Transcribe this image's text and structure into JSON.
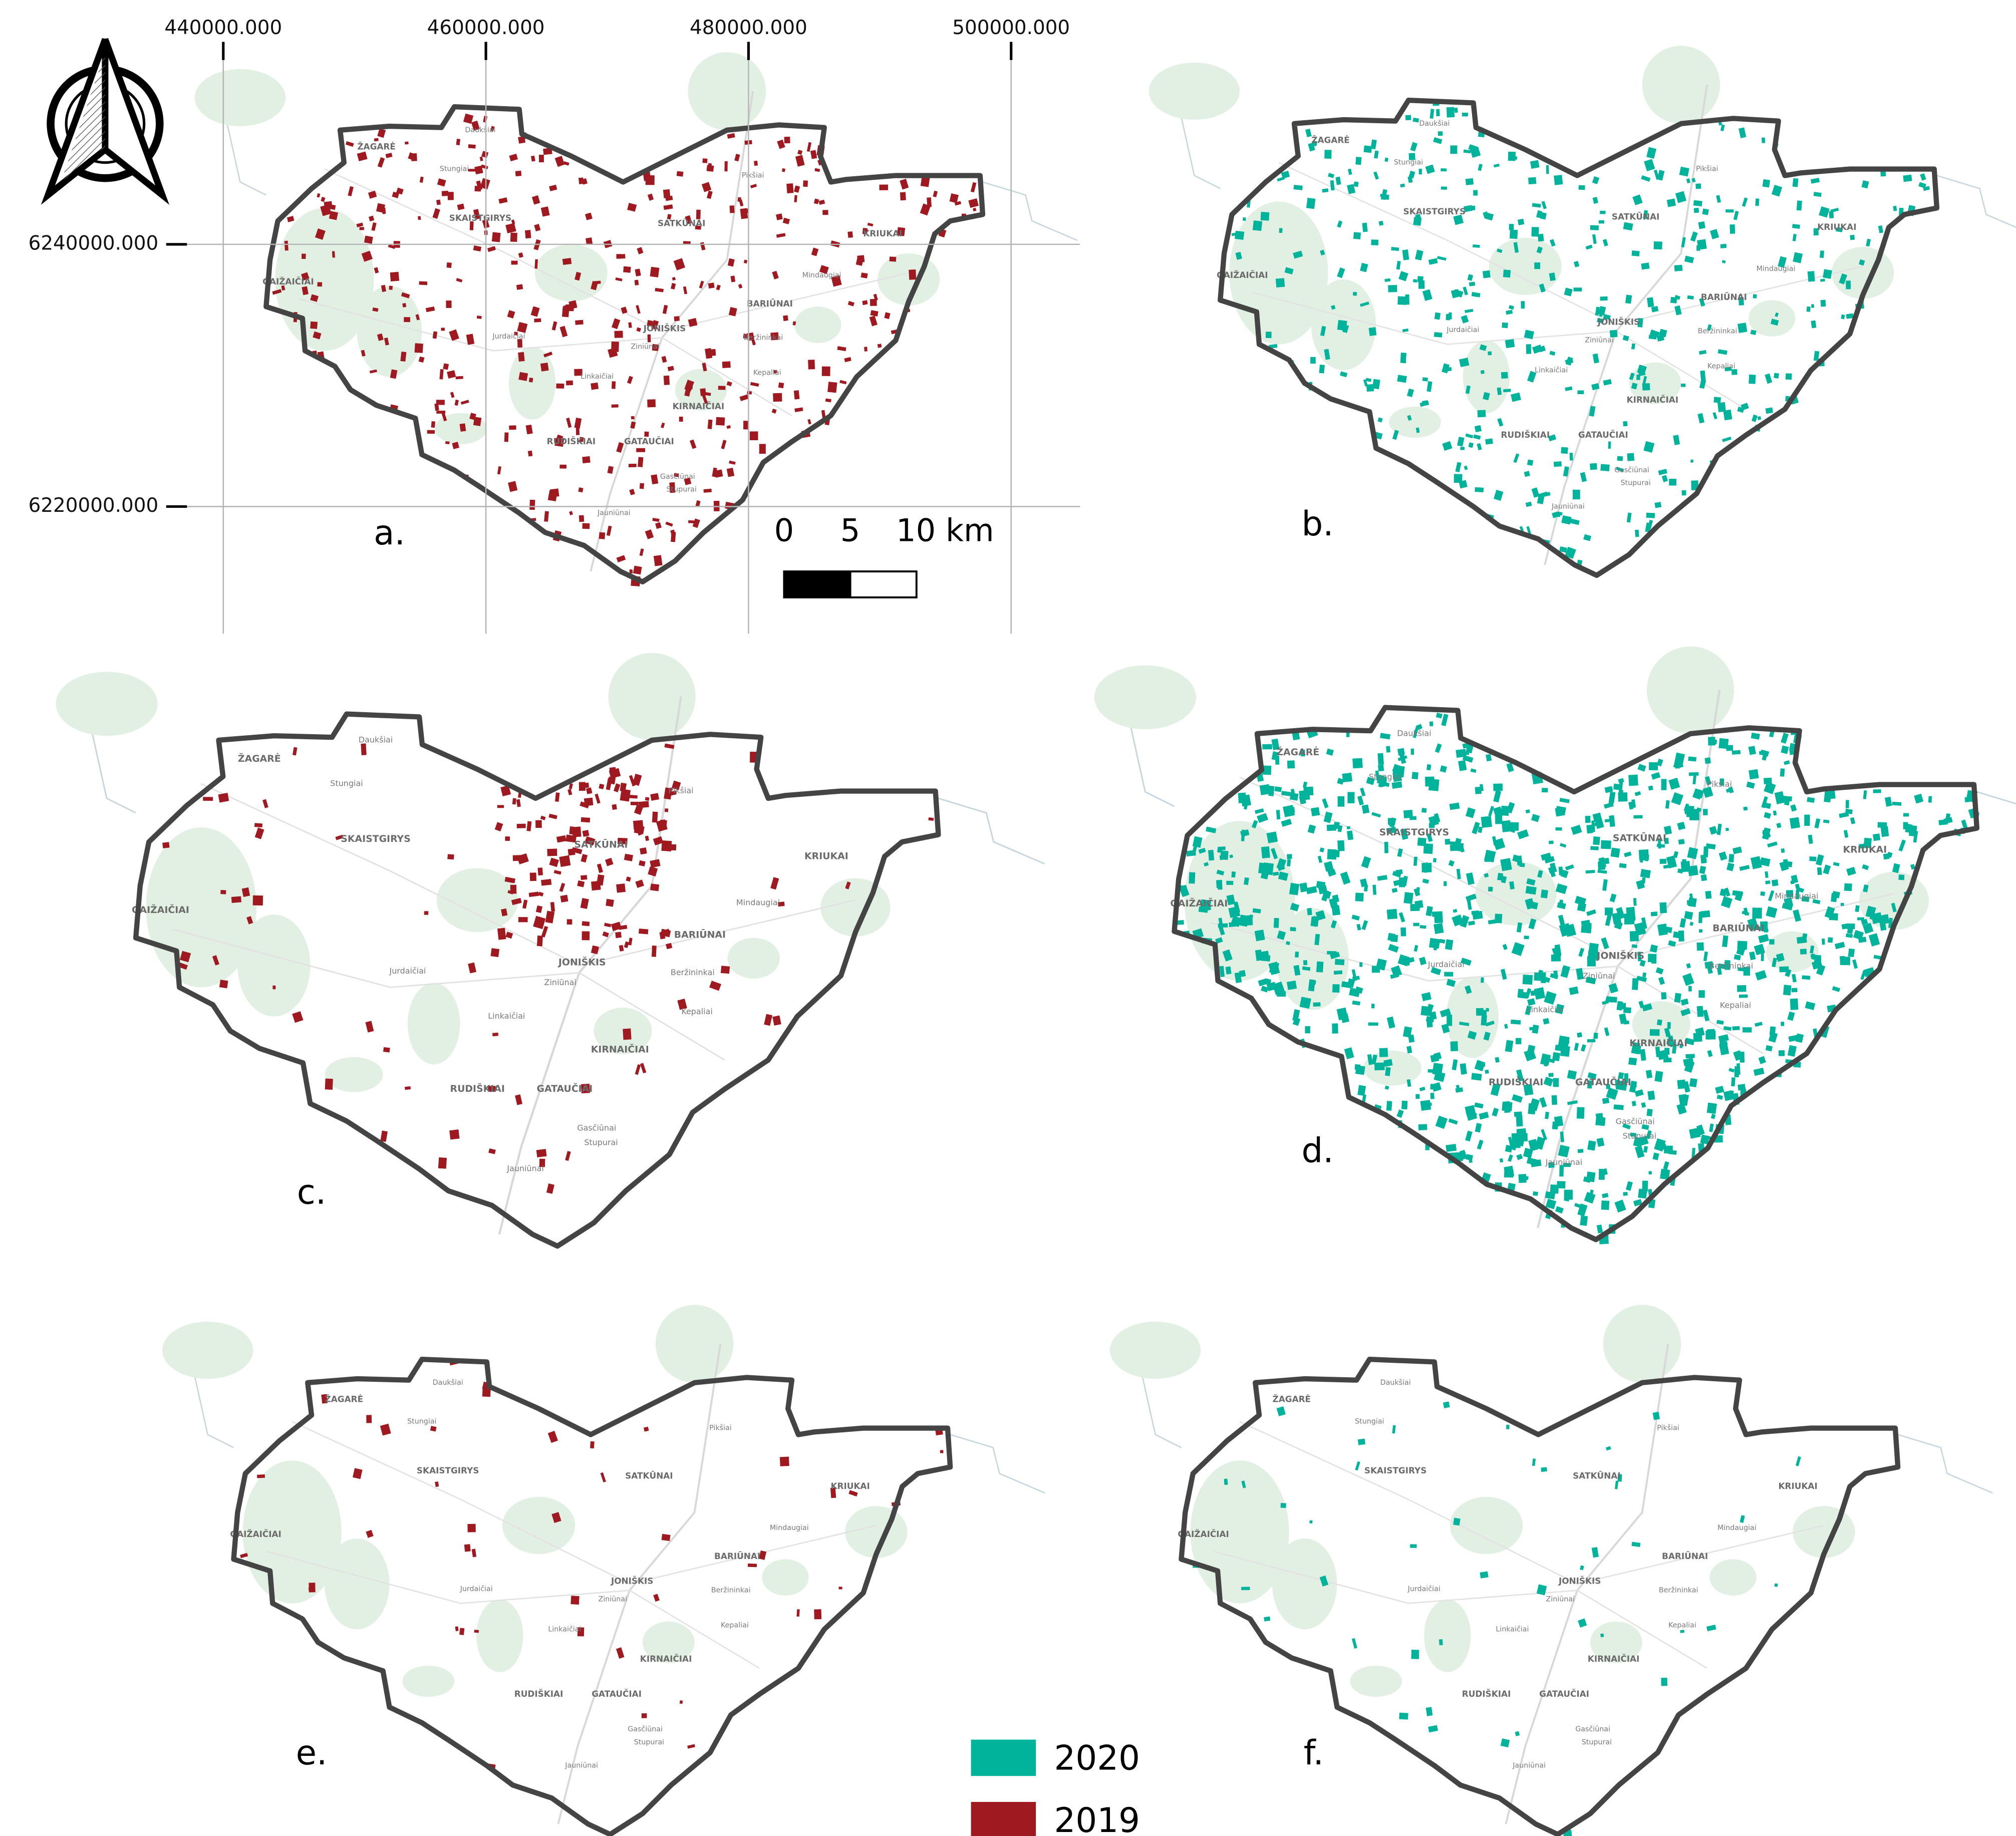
{
  "map_grid": {
    "x_ticks": [
      {
        "value": 440000,
        "label": "440000.000"
      },
      {
        "value": 460000,
        "label": "460000.000"
      },
      {
        "value": 480000,
        "label": "480000.000"
      },
      {
        "value": 500000,
        "label": "500000.000"
      }
    ],
    "y_ticks": [
      {
        "value": 6240000,
        "label": "6240000.000"
      },
      {
        "value": 6220000,
        "label": "6220000.000"
      }
    ]
  },
  "scale_bar": {
    "ticks": [
      {
        "value": 0,
        "label": "0"
      },
      {
        "value": 5,
        "label": "5"
      },
      {
        "value": 10,
        "label": "10 km"
      }
    ]
  },
  "panels": [
    {
      "label": "a."
    },
    {
      "label": "b."
    },
    {
      "label": "c."
    },
    {
      "label": "d."
    },
    {
      "label": "e."
    },
    {
      "label": "f."
    }
  ],
  "place_labels": [
    "ŽAGARĖ",
    "SKAISTGIRYS",
    "SATKŪNAI",
    "KRIUKAI",
    "GAIŽAIČIAI",
    "JONIŠKIS",
    "BARIŪNAI",
    "KIRNAIČIAI",
    "RUDIŠKIAI",
    "GATAUČIAI",
    "Jurdaičiai",
    "Beržininkai",
    "Linkaičiai",
    "Jauniūnai",
    "Stupurai",
    "Stungiai",
    "Daukšiai",
    "Pikšiai",
    "Mindaugiai",
    "Ziniūnai",
    "Kepaliai",
    "Gasčiūnai"
  ],
  "legend": [
    {
      "name": "2020",
      "color": "#00b39a"
    },
    {
      "name": "2019",
      "color": "#9e1a20"
    }
  ]
}
